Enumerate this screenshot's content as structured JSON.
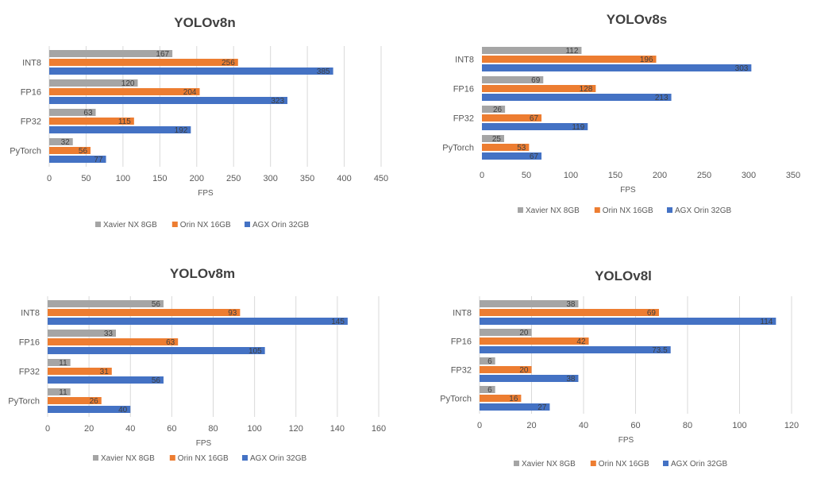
{
  "colors": {
    "xavier": "#a5a5a5",
    "orin_nx": "#ed7d31",
    "agx": "#4472c4",
    "grid": "#d9d9d9",
    "text": "#595959",
    "title": "#404040"
  },
  "chart_data": [
    {
      "type": "bar",
      "orientation": "horizontal",
      "title": "YOLOv8n",
      "xlabel": "FPS",
      "categories": [
        "INT8",
        "FP16",
        "FP32",
        "PyTorch"
      ],
      "xlim": [
        0,
        450
      ],
      "xticks": [
        0,
        50,
        100,
        150,
        200,
        250,
        300,
        350,
        400,
        450
      ],
      "legend_position": "bottom",
      "grid": true,
      "series": [
        {
          "name": "Xavier NX 8GB",
          "color": "#a5a5a5",
          "values": [
            167,
            120,
            63,
            32
          ]
        },
        {
          "name": "Orin NX 16GB",
          "color": "#ed7d31",
          "values": [
            256,
            204,
            115,
            56
          ]
        },
        {
          "name": "AGX Orin 32GB",
          "color": "#4472c4",
          "values": [
            385,
            323,
            192,
            77
          ]
        }
      ]
    },
    {
      "type": "bar",
      "orientation": "horizontal",
      "title": "YOLOv8s",
      "xlabel": "FPS",
      "categories": [
        "INT8",
        "FP16",
        "FP32",
        "PyTorch"
      ],
      "xlim": [
        0,
        350
      ],
      "xticks": [
        0,
        50,
        100,
        150,
        200,
        250,
        300,
        350
      ],
      "legend_position": "bottom",
      "grid": false,
      "series": [
        {
          "name": "Xavier NX 8GB",
          "color": "#a5a5a5",
          "values": [
            112,
            69,
            26,
            25
          ]
        },
        {
          "name": "Orin NX 16GB",
          "color": "#ed7d31",
          "values": [
            196,
            128,
            67,
            53
          ]
        },
        {
          "name": "AGX Orin 32GB",
          "color": "#4472c4",
          "values": [
            303,
            213,
            119,
            67
          ]
        }
      ]
    },
    {
      "type": "bar",
      "orientation": "horizontal",
      "title": "YOLOv8m",
      "xlabel": "FPS",
      "categories": [
        "INT8",
        "FP16",
        "FP32",
        "PyTorch"
      ],
      "xlim": [
        0,
        160
      ],
      "xticks": [
        0,
        20,
        40,
        60,
        80,
        100,
        120,
        140,
        160
      ],
      "legend_position": "bottom",
      "grid": true,
      "series": [
        {
          "name": "Xavier NX 8GB",
          "color": "#a5a5a5",
          "values": [
            56,
            33,
            11,
            11
          ]
        },
        {
          "name": "Orin NX 16GB",
          "color": "#ed7d31",
          "values": [
            93,
            63,
            31,
            26
          ]
        },
        {
          "name": "AGX Orin 32GB",
          "color": "#4472c4",
          "values": [
            145,
            105,
            56,
            40
          ]
        }
      ]
    },
    {
      "type": "bar",
      "orientation": "horizontal",
      "title": "YOLOv8l",
      "xlabel": "FPS",
      "categories": [
        "INT8",
        "FP16",
        "FP32",
        "PyTorch"
      ],
      "xlim": [
        0,
        120
      ],
      "xticks": [
        0,
        20,
        40,
        60,
        80,
        100,
        120
      ],
      "legend_position": "bottom",
      "grid": true,
      "series": [
        {
          "name": "Xavier NX 8GB",
          "color": "#a5a5a5",
          "values": [
            38,
            20,
            6,
            6
          ]
        },
        {
          "name": "Orin NX 16GB",
          "color": "#ed7d31",
          "values": [
            69,
            42,
            20,
            16
          ]
        },
        {
          "name": "AGX Orin 32GB",
          "color": "#4472c4",
          "values": [
            114,
            73.5,
            38,
            27
          ]
        }
      ]
    }
  ]
}
